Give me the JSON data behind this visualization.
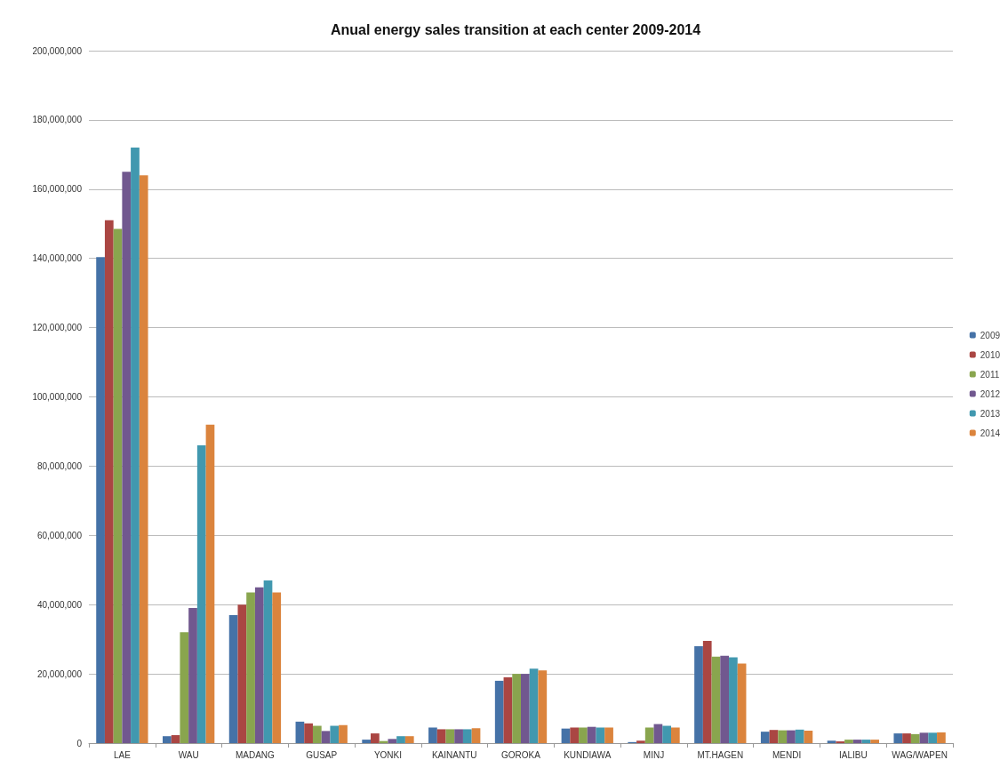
{
  "chart_data": {
    "type": "bar",
    "title": "Anual energy sales transition at each center 2009-2014",
    "categories": [
      "LAE",
      "WAU",
      "MADANG",
      "GUSAP",
      "YONKI",
      "KAINANTU",
      "GOROKA",
      "KUNDIAWA",
      "MINJ",
      "MT.HAGEN",
      "MENDI",
      "IALIBU",
      "WAG/WAPEN"
    ],
    "series": [
      {
        "name": "2009",
        "color": "#4572a7",
        "values": [
          140400000,
          2000000,
          37000000,
          6200000,
          1000000,
          4500000,
          18000000,
          4200000,
          300000,
          28000000,
          3300000,
          700000,
          2800000
        ]
      },
      {
        "name": "2010",
        "color": "#aa4643",
        "values": [
          151000000,
          2300000,
          40000000,
          5700000,
          2800000,
          4000000,
          19000000,
          4500000,
          700000,
          29500000,
          3800000,
          500000,
          2800000
        ]
      },
      {
        "name": "2011",
        "color": "#89a54e",
        "values": [
          148500000,
          32000000,
          43500000,
          5000000,
          600000,
          4000000,
          20000000,
          4500000,
          4500000,
          25000000,
          3700000,
          1000000,
          2600000
        ]
      },
      {
        "name": "2012",
        "color": "#71588f",
        "values": [
          165000000,
          39000000,
          45000000,
          3500000,
          1200000,
          4000000,
          20000000,
          4700000,
          5500000,
          25200000,
          3700000,
          1000000,
          3000000
        ]
      },
      {
        "name": "2013",
        "color": "#4198af",
        "values": [
          172000000,
          86000000,
          47000000,
          5000000,
          2000000,
          4000000,
          21500000,
          4500000,
          5000000,
          24800000,
          3900000,
          1000000,
          3000000
        ]
      },
      {
        "name": "2014",
        "color": "#db843d",
        "values": [
          164000000,
          92000000,
          43500000,
          5200000,
          2000000,
          4300000,
          21000000,
          4500000,
          4500000,
          23000000,
          3600000,
          1000000,
          3100000
        ]
      }
    ],
    "ylim": [
      0,
      200000000
    ],
    "yticks": [
      {
        "value": 0,
        "label": "0"
      },
      {
        "value": 20000000,
        "label": "20,000,000"
      },
      {
        "value": 40000000,
        "label": "40,000,000"
      },
      {
        "value": 60000000,
        "label": "60,000,000"
      },
      {
        "value": 80000000,
        "label": "80,000,000"
      },
      {
        "value": 100000000,
        "label": "100,000,000"
      },
      {
        "value": 120000000,
        "label": "120,000,000"
      },
      {
        "value": 140000000,
        "label": "140,000,000"
      },
      {
        "value": 160000000,
        "label": "160,000,000"
      },
      {
        "value": 180000000,
        "label": "180,000,000"
      },
      {
        "value": 200000000,
        "label": "200,000,000"
      }
    ],
    "grid": "y",
    "legend": "right"
  }
}
